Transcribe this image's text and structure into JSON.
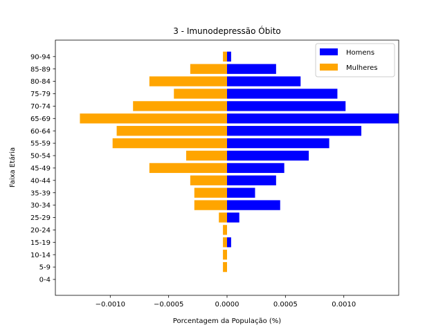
{
  "chart_data": {
    "type": "bar",
    "orientation": "horizontal",
    "title": "3 - Imunodepressão Óbito",
    "xlabel": "Porcentagem da População (%)",
    "ylabel": "Faixa Etária",
    "categories": [
      "0-4",
      "5-9",
      "10-14",
      "15-19",
      "20-24",
      "25-29",
      "30-34",
      "35-39",
      "40-44",
      "45-49",
      "50-54",
      "55-59",
      "60-64",
      "65-69",
      "70-74",
      "75-79",
      "80-84",
      "85-89",
      "90-94"
    ],
    "series": [
      {
        "name": "Homens",
        "color": "#0000ff",
        "values": [
          0,
          0,
          0,
          3.5e-05,
          0,
          0.000105,
          0.000455,
          0.00024,
          0.00042,
          0.00049,
          0.0007,
          0.000875,
          0.00115,
          0.00147,
          0.001015,
          0.000945,
          0.00063,
          0.00042,
          3.5e-05
        ]
      },
      {
        "name": "Mulheres",
        "color": "#ffa500",
        "values": [
          0,
          -3.5e-05,
          -3.5e-05,
          -3.5e-05,
          -3.5e-05,
          -7e-05,
          -0.00028,
          -0.00028,
          -0.000315,
          -0.000665,
          -0.00035,
          -0.00098,
          -0.000945,
          -0.00126,
          -0.000805,
          -0.000455,
          -0.000665,
          -0.000315,
          -3.5e-05
        ]
      }
    ],
    "xlim": [
      -0.00147,
      0.00147
    ],
    "xticks": [
      -0.001,
      -0.0005,
      0.0,
      0.0005,
      0.001
    ],
    "xtick_labels": [
      "−0.0010",
      "−0.0005",
      "0.0000",
      "0.0005",
      "0.0010"
    ],
    "legend_position": "top-right"
  }
}
